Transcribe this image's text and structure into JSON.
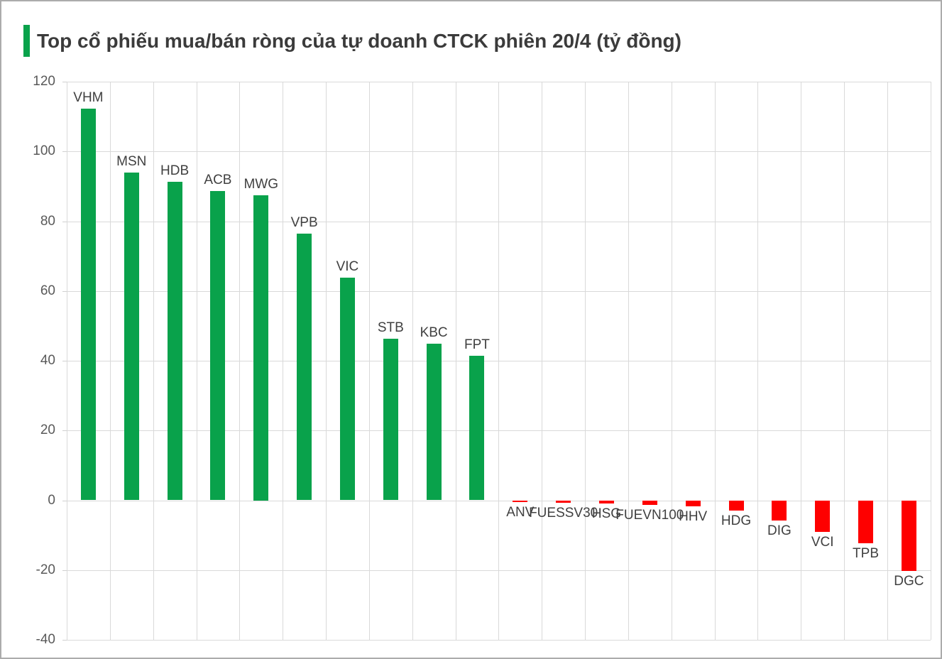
{
  "title": {
    "text": "Top cổ phiếu mua/bán ròng của tự doanh CTCK phiên 20/4 (tỷ đồng)"
  },
  "colors": {
    "positive_bar": "#09a24b",
    "negative_bar": "#fe0000",
    "gridline": "#d9d9d9",
    "axis_tick": "#d0d0d0",
    "axis_label_text": "#595959",
    "data_label_text": "#404040",
    "title_text": "#3b3b3b",
    "title_accent": "#09a24b",
    "canvas_border": "#ababab",
    "background": "#ffffff"
  },
  "chart_data": {
    "type": "bar",
    "title": "Top cổ phiếu mua/bán ròng của tự doanh CTCK phiên 20/4 (tỷ đồng)",
    "xlabel": "",
    "ylabel": "",
    "unit": "tỷ đồng",
    "categories": [
      "VHM",
      "MSN",
      "HDB",
      "ACB",
      "MWG",
      "VPB",
      "VIC",
      "STB",
      "KBC",
      "FPT",
      "ANV",
      "FUESSV30",
      "HSG",
      "FUEVN100",
      "HHV",
      "HDG",
      "DIG",
      "VCI",
      "TPB",
      "DGC"
    ],
    "values": [
      112.2,
      94.0,
      91.3,
      88.7,
      87.5,
      76.5,
      63.8,
      46.4,
      44.8,
      41.5,
      -0.5,
      -0.8,
      -1.0,
      -1.3,
      -1.8,
      -2.9,
      -5.7,
      -9.0,
      -12.4,
      -20.2
    ],
    "ylim": [
      -40,
      120
    ],
    "ytick_interval": 20,
    "ytick_labels": [
      "120",
      "100",
      "80",
      "60",
      "40",
      "20",
      "0",
      "-20",
      "-40"
    ],
    "grid": true,
    "legend_position": "none",
    "data_label_position": "outside-end",
    "positive_color": "#09a24b",
    "negative_color": "#fe0000"
  }
}
